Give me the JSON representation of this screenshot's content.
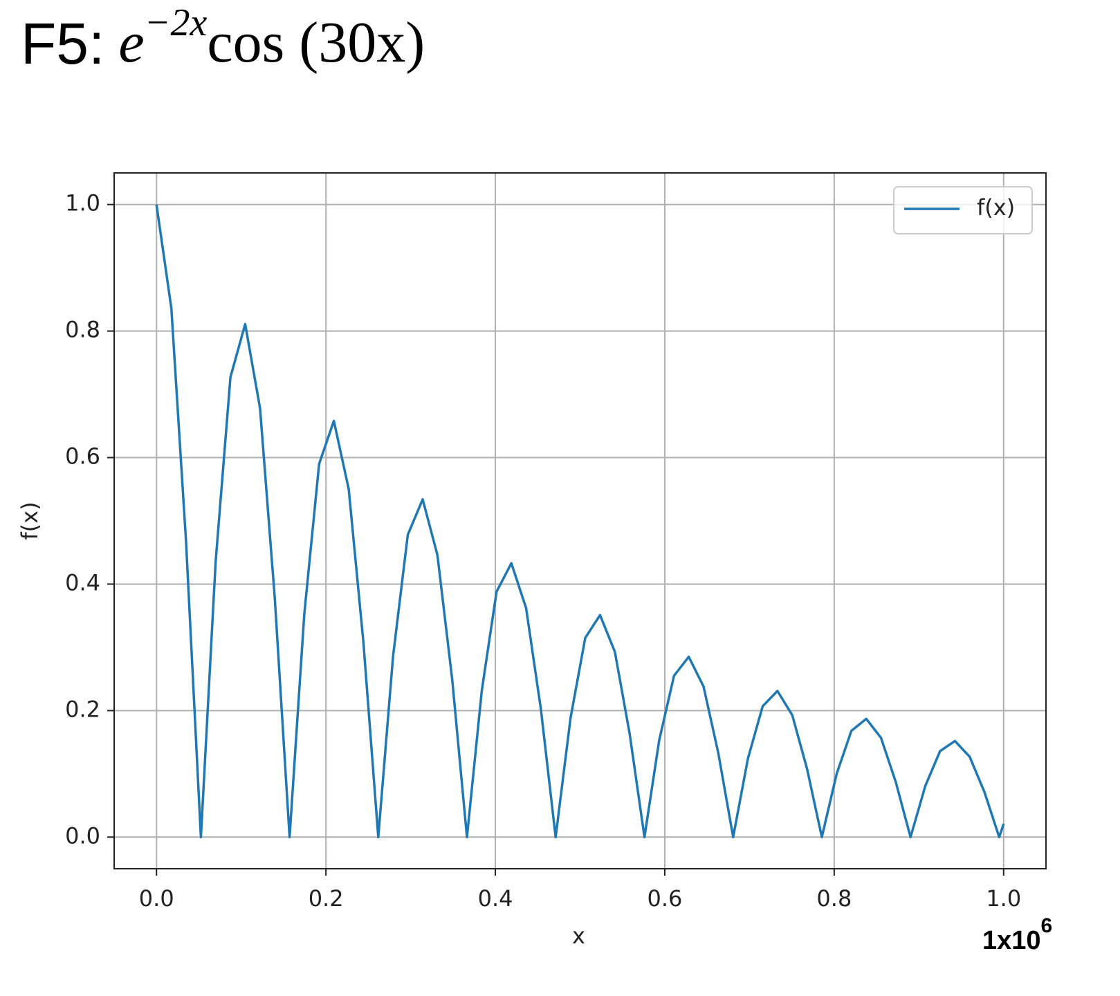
{
  "chart_data": {
    "type": "line",
    "title": {
      "prefix": "F5:",
      "base": "e",
      "exponent": "−2x",
      "rest": "cos (30x)"
    },
    "xlabel": "x",
    "ylabel": "f(x)",
    "offset_text": {
      "base": "1x10",
      "exponent": "6"
    },
    "x": [
      0,
      0.0175,
      0.0349,
      0.0524,
      0.0698,
      0.0873,
      0.1047,
      0.1222,
      0.1396,
      0.1571,
      0.1745,
      0.192,
      0.2094,
      0.2269,
      0.2443,
      0.2618,
      0.2793,
      0.2967,
      0.3142,
      0.3316,
      0.3491,
      0.3665,
      0.384,
      0.4014,
      0.4189,
      0.4363,
      0.4538,
      0.4712,
      0.4887,
      0.5061,
      0.5236,
      0.5411,
      0.5585,
      0.576,
      0.5934,
      0.6109,
      0.6283,
      0.6458,
      0.6632,
      0.6807,
      0.6981,
      0.7156,
      0.733,
      0.7505,
      0.7679,
      0.7854,
      0.8029,
      0.8203,
      0.8378,
      0.8552,
      0.8727,
      0.8901,
      0.9076,
      0.925,
      0.9425,
      0.9599,
      0.9774,
      0.9948,
      1.0
    ],
    "series": [
      {
        "name": "f(x)",
        "color": "#1f77b4",
        "values": [
          1,
          0.836,
          0.466,
          0,
          0.435,
          0.727,
          0.811,
          0.678,
          0.378,
          0,
          0.353,
          0.59,
          0.658,
          0.55,
          0.307,
          0,
          0.286,
          0.478,
          0.534,
          0.446,
          0.249,
          0,
          0.232,
          0.388,
          0.433,
          0.362,
          0.202,
          0,
          0.188,
          0.315,
          0.351,
          0.293,
          0.164,
          0,
          0.153,
          0.255,
          0.285,
          0.238,
          0.133,
          0,
          0.124,
          0.207,
          0.231,
          0.193,
          0.108,
          0,
          0.1,
          0.168,
          0.187,
          0.157,
          0.087,
          0,
          0.081,
          0.136,
          0.152,
          0.127,
          0.071,
          0,
          0.021
        ]
      }
    ],
    "xlim": [
      -0.05,
      1.05
    ],
    "ylim": [
      -0.05,
      1.05
    ],
    "xticks": [
      {
        "value": 0,
        "label": "0.0"
      },
      0.2,
      0.4,
      0.6,
      0.8,
      {
        "value": 1,
        "label": "1.0"
      }
    ],
    "yticks": [
      {
        "value": 0,
        "label": "0.0"
      },
      0.2,
      0.4,
      0.6,
      0.8,
      {
        "value": 1,
        "label": "1.0"
      }
    ],
    "grid": true,
    "legend": "upper right"
  }
}
